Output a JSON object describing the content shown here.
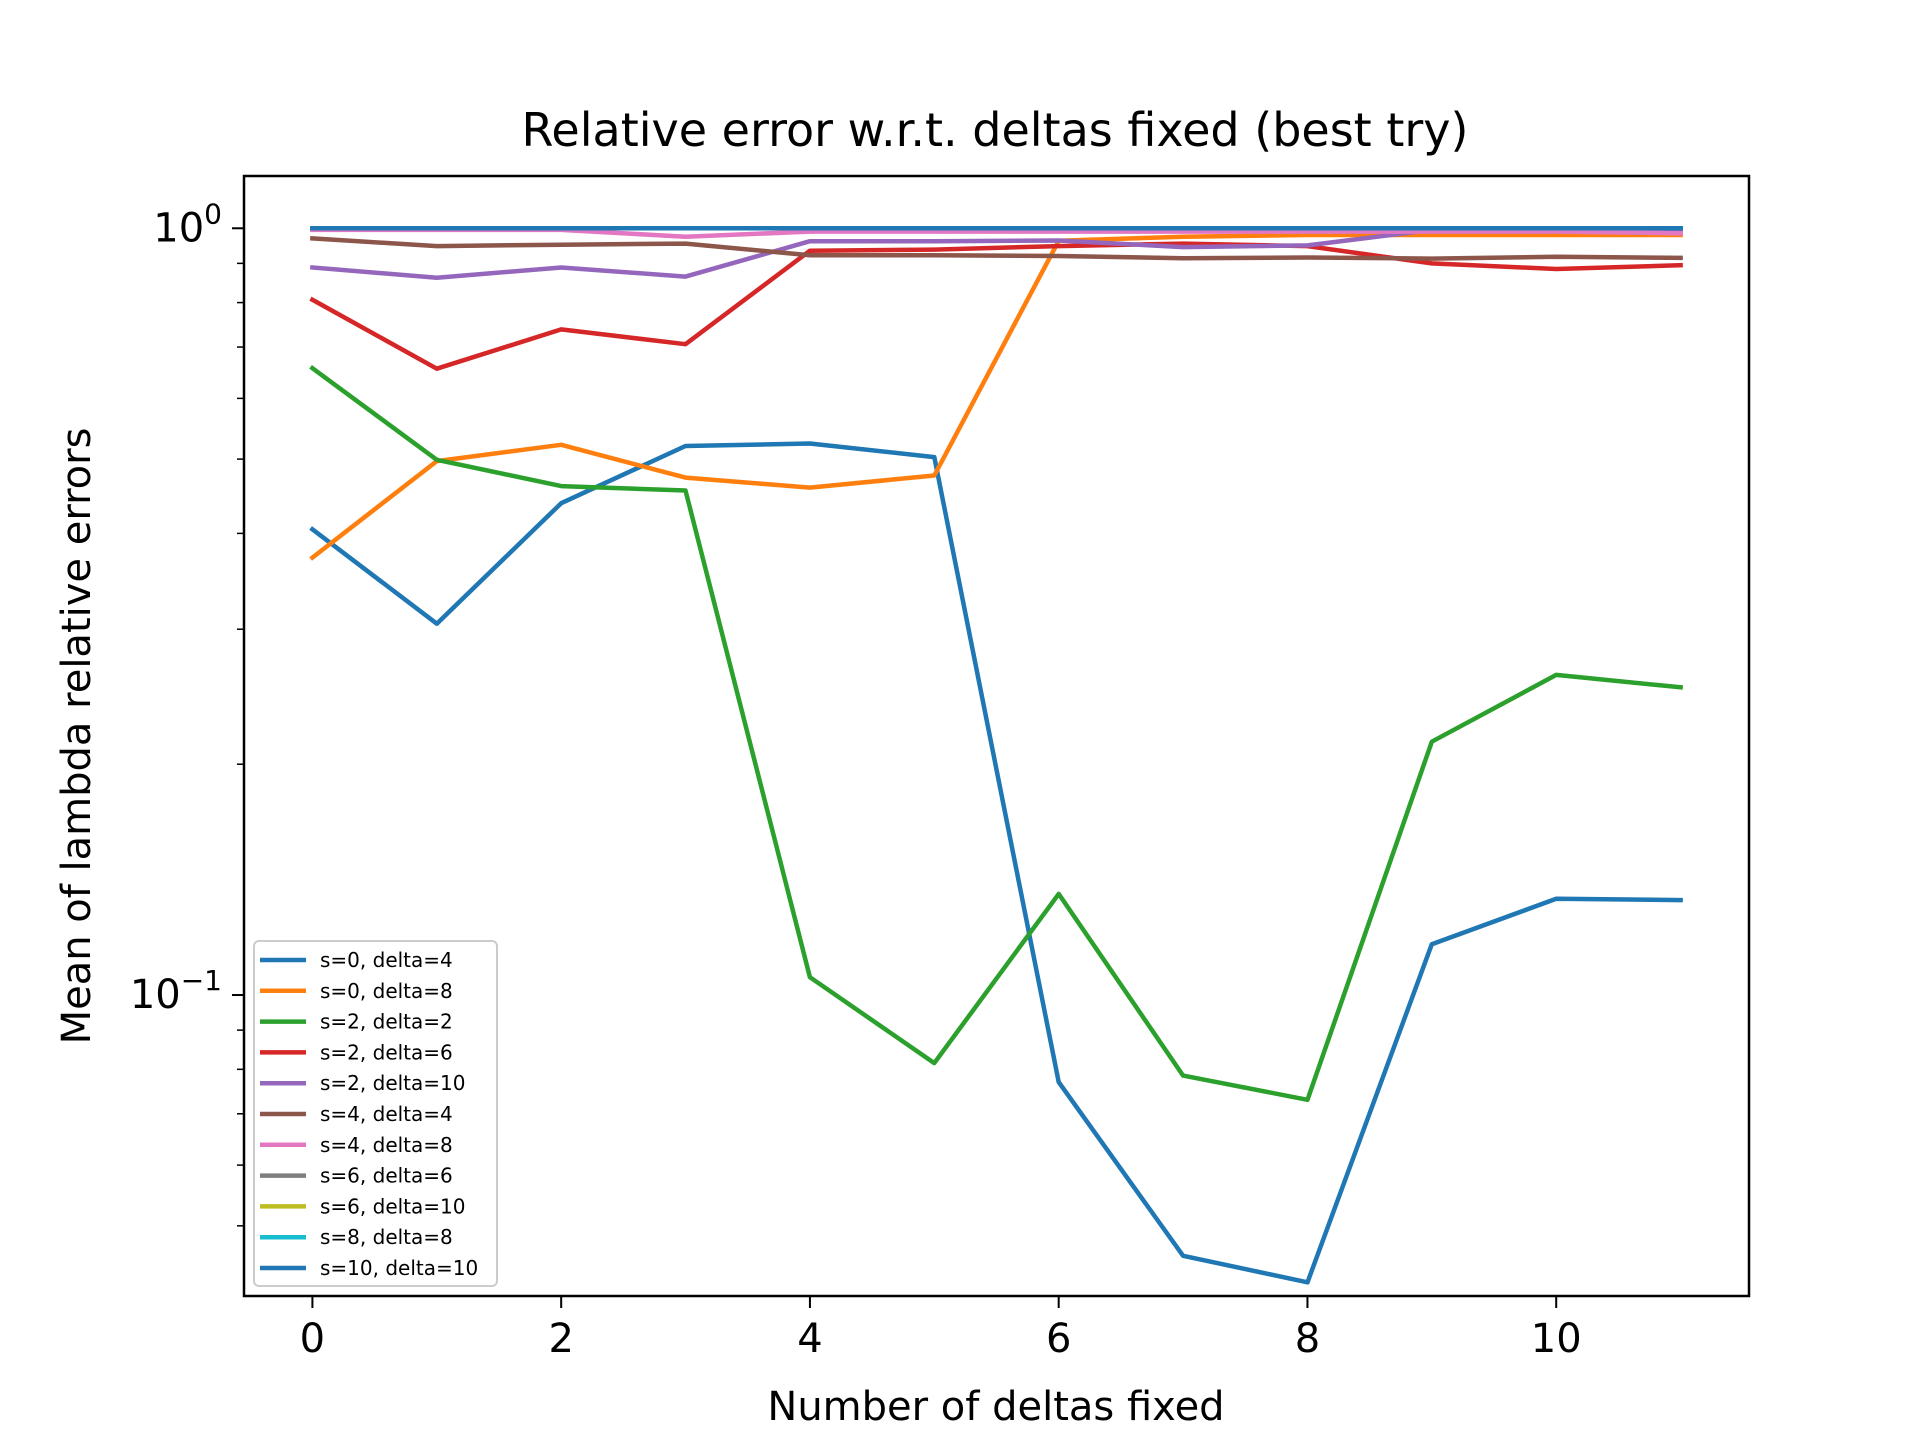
{
  "chart_data": {
    "type": "line",
    "title": "Relative error w.r.t. deltas fixed (best try)",
    "xlabel": "Number of deltas fixed",
    "ylabel": "Mean of lambda relative errors",
    "y_scale": "log",
    "xlim": [
      -0.55,
      11.55
    ],
    "ylim": [
      0.0405,
      1.17
    ],
    "xticks": [
      0,
      2,
      4,
      6,
      8,
      10
    ],
    "xtick_labels": [
      "0",
      "2",
      "4",
      "6",
      "8",
      "10"
    ],
    "yticks_major": [
      {
        "value": 1.0,
        "base": "10",
        "exp": "0"
      },
      {
        "value": 0.1,
        "base": "10",
        "exp": "−1"
      }
    ],
    "yticks_minor": [
      0.05,
      0.06,
      0.07,
      0.08,
      0.09,
      0.2,
      0.3,
      0.4,
      0.5,
      0.6,
      0.7,
      0.8,
      0.9
    ],
    "grid": false,
    "legend_position": "lower-left",
    "x": [
      0,
      1,
      2,
      3,
      4,
      5,
      6,
      7,
      8,
      9,
      10,
      11
    ],
    "series": [
      {
        "name": "s=0, delta=4",
        "color": "#1f77b4",
        "values": [
          0.405,
          0.305,
          0.438,
          0.52,
          0.524,
          0.503,
          0.077,
          0.0457,
          0.0422,
          0.1165,
          0.1335,
          0.133
        ]
      },
      {
        "name": "s=0, delta=8",
        "color": "#ff7f0e",
        "values": [
          0.372,
          0.497,
          0.522,
          0.473,
          0.459,
          0.476,
          0.963,
          0.975,
          0.98,
          0.98,
          0.98,
          0.98
        ]
      },
      {
        "name": "s=2, delta=2",
        "color": "#2ca02c",
        "values": [
          0.657,
          0.499,
          0.461,
          0.455,
          0.1055,
          0.0815,
          0.1355,
          0.0785,
          0.073,
          0.214,
          0.2615,
          0.252
        ]
      },
      {
        "name": "s=2, delta=6",
        "color": "#d62728",
        "values": [
          0.807,
          0.656,
          0.738,
          0.706,
          0.935,
          0.938,
          0.948,
          0.955,
          0.948,
          0.9,
          0.885,
          0.895
        ]
      },
      {
        "name": "s=2, delta=10",
        "color": "#9467bd",
        "values": [
          0.889,
          0.862,
          0.889,
          0.865,
          0.962,
          0.962,
          0.964,
          0.945,
          0.95,
          0.995,
          0.995,
          0.995
        ]
      },
      {
        "name": "s=4, delta=4",
        "color": "#8c564b",
        "values": [
          0.97,
          0.948,
          0.952,
          0.955,
          0.922,
          0.922,
          0.92,
          0.914,
          0.916,
          0.913,
          0.918,
          0.915
        ]
      },
      {
        "name": "s=4, delta=8",
        "color": "#e377c2",
        "values": [
          0.995,
          0.995,
          0.995,
          0.975,
          0.99,
          0.99,
          0.99,
          0.99,
          0.99,
          0.99,
          0.99,
          0.985
        ]
      },
      {
        "name": "s=6, delta=6",
        "color": "#7f7f7f",
        "values": [
          1.0,
          1.0,
          1.0,
          1.0,
          1.0,
          1.0,
          1.0,
          1.0,
          1.0,
          1.0,
          1.0,
          1.0
        ]
      },
      {
        "name": "s=6, delta=10",
        "color": "#bcbd22",
        "values": [
          1.0,
          1.0,
          1.0,
          1.0,
          1.0,
          1.0,
          1.0,
          1.0,
          1.0,
          1.0,
          1.0,
          1.0
        ]
      },
      {
        "name": "s=8, delta=8",
        "color": "#17becf",
        "values": [
          1.0,
          1.0,
          1.0,
          1.0,
          1.0,
          1.0,
          1.0,
          1.0,
          1.0,
          1.0,
          1.0,
          1.0
        ]
      },
      {
        "name": "s=10, delta=10",
        "color": "#1f77b4",
        "values": [
          1.0,
          1.0,
          1.0,
          1.0,
          1.0,
          1.0,
          1.0,
          1.0,
          1.0,
          1.0,
          1.0,
          1.0
        ]
      }
    ]
  }
}
